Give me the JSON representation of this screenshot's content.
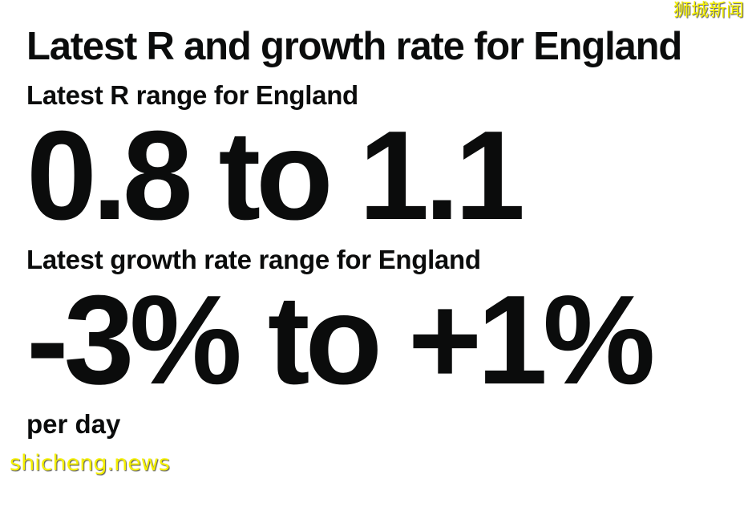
{
  "title": "Latest R and growth rate for England",
  "r": {
    "label": "Latest R range for England",
    "value": "0.8 to 1.1"
  },
  "growth": {
    "label": "Latest growth rate range for England",
    "value": "-3% to +1%",
    "unit": "per day"
  },
  "watermarks": {
    "top": "狮城新闻",
    "bottom": "shicheng.news",
    "color": "#f5f000"
  }
}
